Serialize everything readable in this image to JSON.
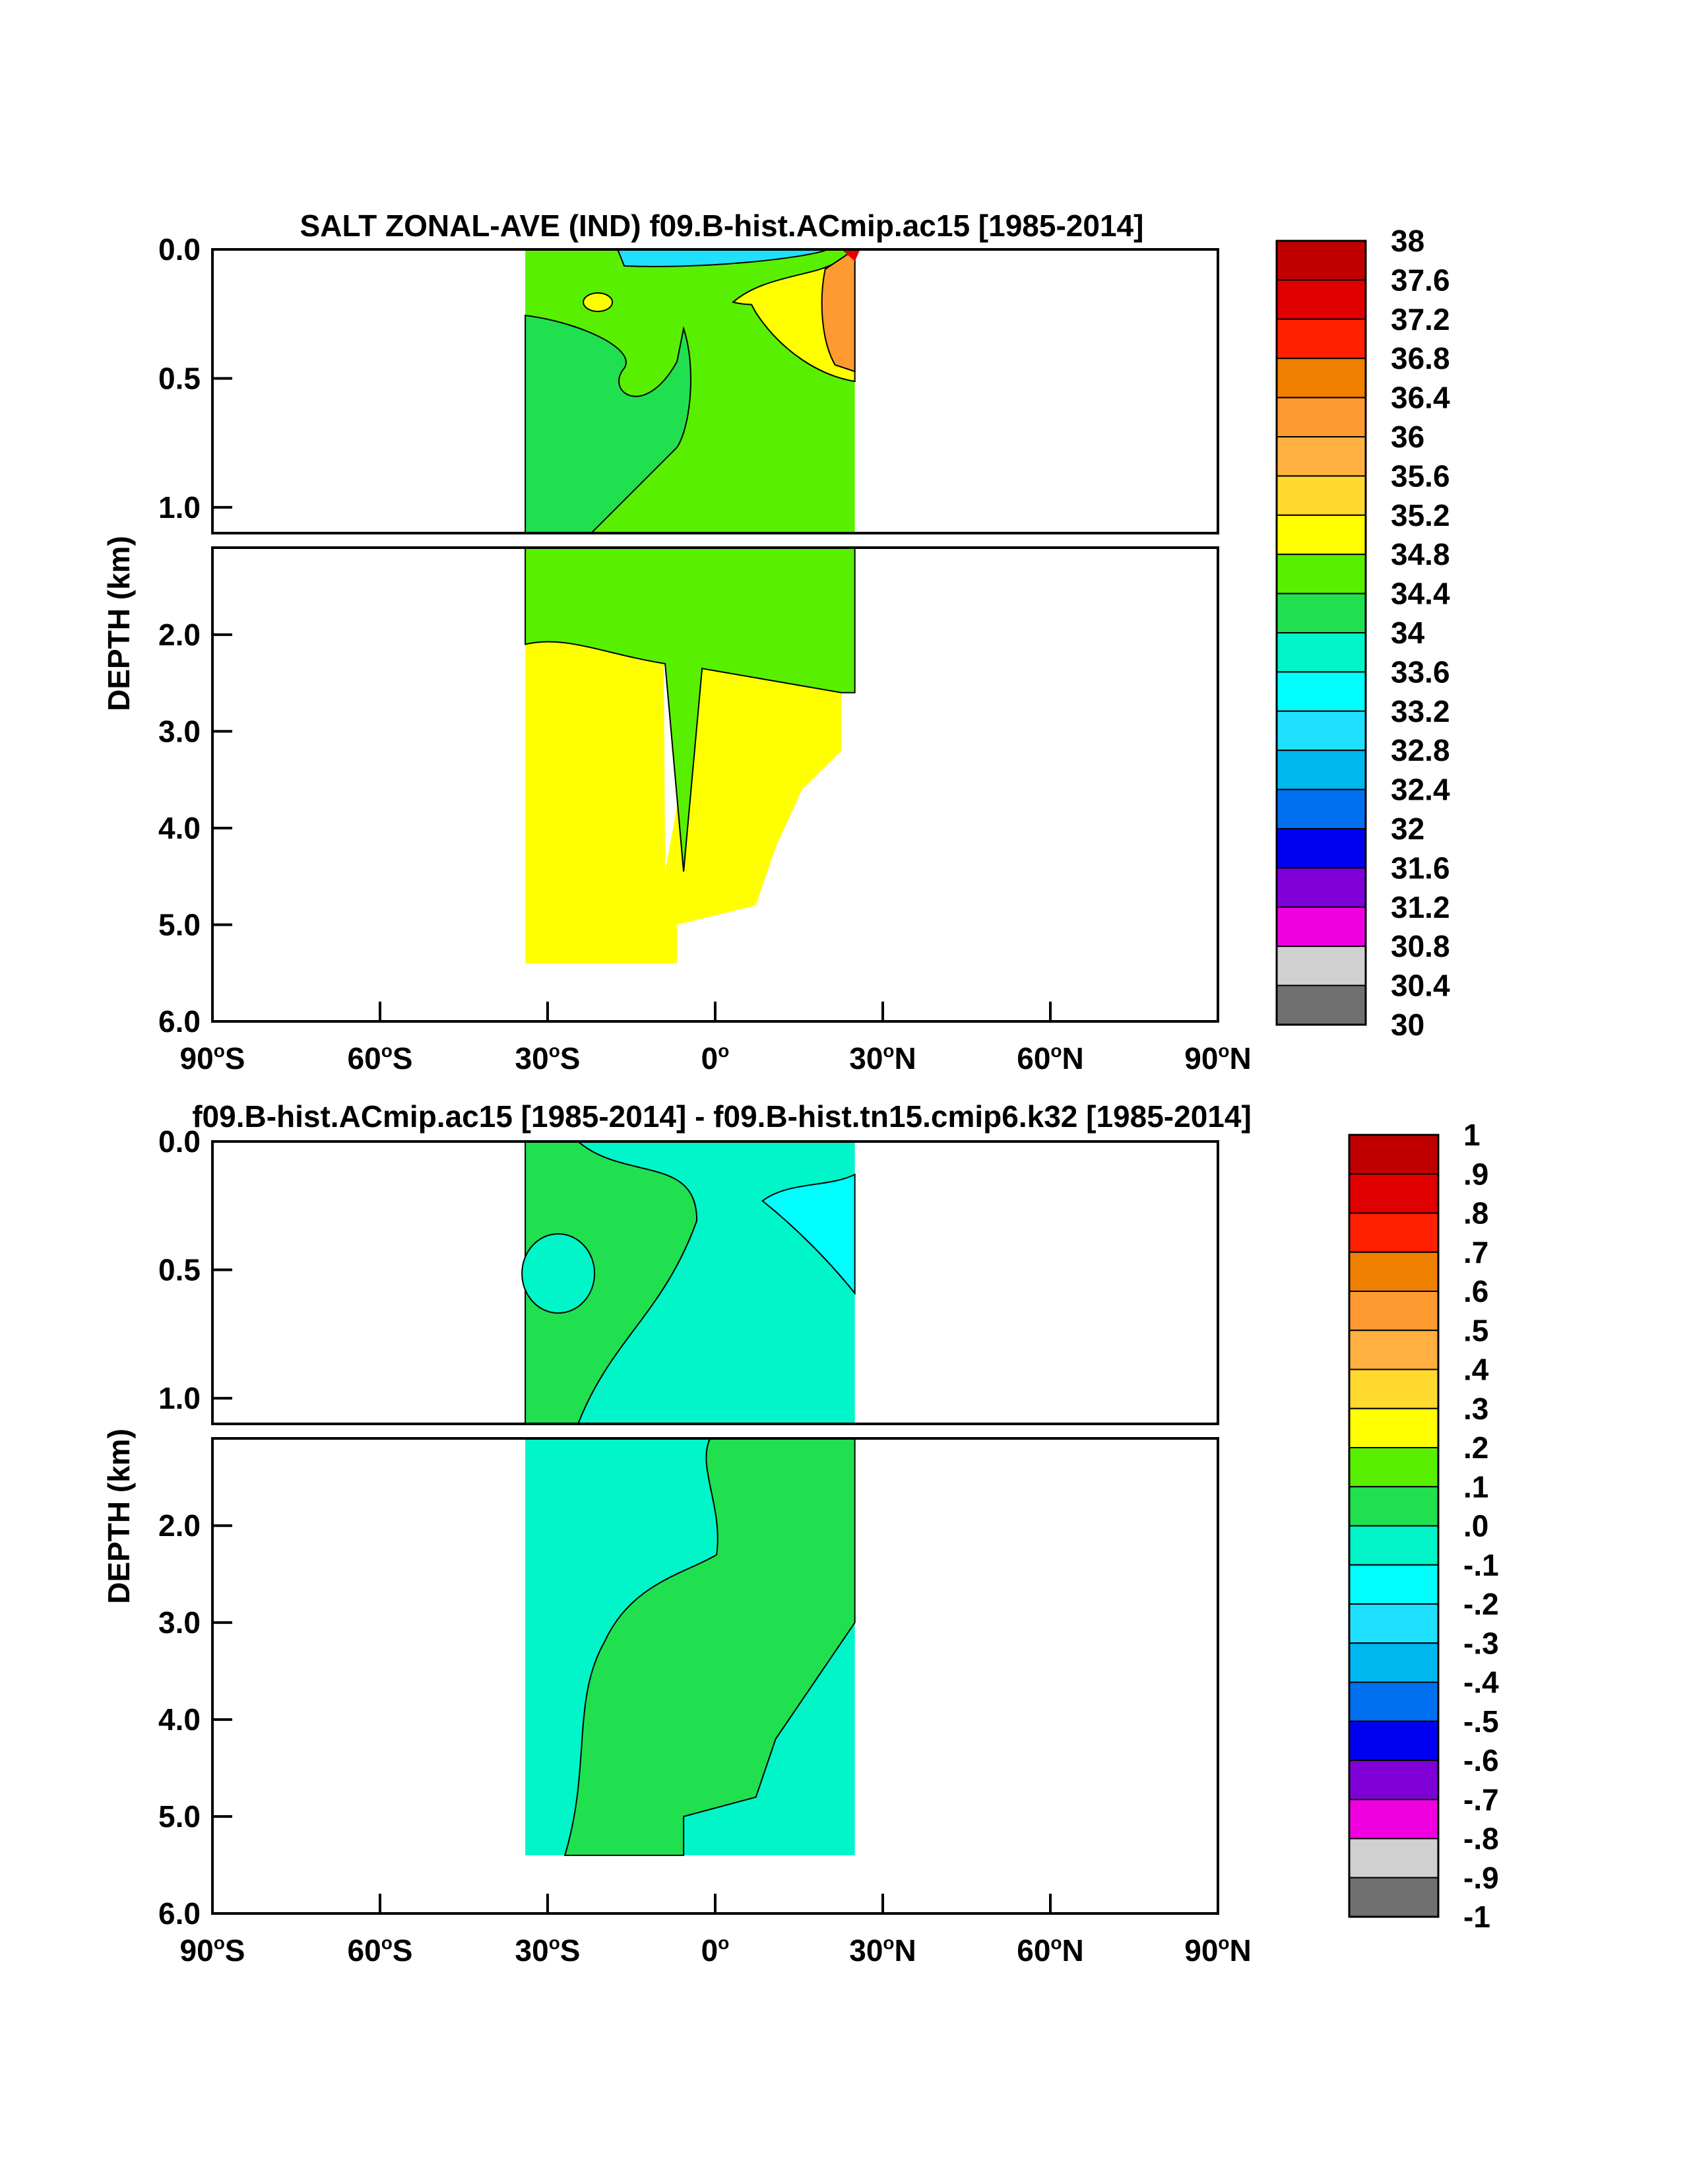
{
  "chart_data": [
    {
      "type": "contour",
      "title": "SALT ZONAL-AVE (IND) f09.B-hist.ACmip.ac15 [1985-2014]",
      "ylabel": "DEPTH (km)",
      "xlabel": "",
      "x_ticks": [
        "90°S",
        "60°S",
        "30°S",
        "0°",
        "30°N",
        "60°N",
        "90°N"
      ],
      "xlim": [
        -90,
        90
      ],
      "upper_panel": {
        "ylim": [
          0,
          1.1
        ],
        "y_ticks": [
          "0.0",
          "0.5",
          "1.0"
        ],
        "y_values": [
          0,
          0.5,
          1.0
        ]
      },
      "lower_panel": {
        "ylim": [
          1.1,
          6.0
        ],
        "y_ticks": [
          "2.0",
          "3.0",
          "4.0",
          "5.0",
          "6.0"
        ],
        "y_values": [
          2,
          3,
          4,
          5,
          6
        ]
      },
      "data_lon_range": [
        -34,
        25
      ],
      "colorbar": {
        "labels": [
          "38",
          "37.6",
          "37.2",
          "36.8",
          "36.4",
          "36",
          "35.6",
          "35.2",
          "34.8",
          "34.4",
          "34",
          "33.6",
          "33.2",
          "32.8",
          "32.4",
          "32",
          "31.6",
          "31.2",
          "30.8",
          "30.4",
          "30"
        ],
        "colors": [
          "#c00000",
          "#e00000",
          "#ff2000",
          "#f08000",
          "#ff9a30",
          "#ffb040",
          "#ffd830",
          "#ffff00",
          "#58f000",
          "#20e050",
          "#00f5c8",
          "#00ffff",
          "#20e0ff",
          "#00b8f0",
          "#0070f0",
          "#0000f0",
          "#8000d8",
          "#f000e0",
          "#d0d0d0",
          "#707070"
        ]
      },
      "fields": {
        "upper_background": "#58f000",
        "lower_background": "#ffff00",
        "regions": [
          "34.4 (green) intermediate waters",
          "34.8-35.2 (yellow) deep waters",
          "36-37.6 near 25°N surface (Red Sea/Persian Gulf outflow)",
          "33.2-34 surface fresh tongue near equator"
        ]
      }
    },
    {
      "type": "contour",
      "title": "f09.B-hist.ACmip.ac15 [1985-2014] - f09.B-hist.tn15.cmip6.k32 [1985-2014]",
      "ylabel": "DEPTH (km)",
      "xlabel": "",
      "x_ticks": [
        "90°S",
        "60°S",
        "30°S",
        "0°",
        "30°N",
        "60°N",
        "90°N"
      ],
      "xlim": [
        -90,
        90
      ],
      "upper_panel": {
        "ylim": [
          0,
          1.1
        ],
        "y_ticks": [
          "0.0",
          "0.5",
          "1.0"
        ],
        "y_values": [
          0,
          0.5,
          1.0
        ]
      },
      "lower_panel": {
        "ylim": [
          1.1,
          6.0
        ],
        "y_ticks": [
          "2.0",
          "3.0",
          "4.0",
          "5.0",
          "6.0"
        ],
        "y_values": [
          2,
          3,
          4,
          5,
          6
        ]
      },
      "data_lon_range": [
        -34,
        25
      ],
      "colorbar": {
        "labels": [
          "1",
          ".9",
          ".8",
          ".7",
          ".6",
          ".5",
          ".4",
          ".3",
          ".2",
          ".1",
          ".0",
          "-.1",
          "-.2",
          "-.3",
          "-.4",
          "-.5",
          "-.6",
          "-.7",
          "-.8",
          "-.9",
          "-1"
        ],
        "colors": [
          "#c00000",
          "#e00000",
          "#ff2000",
          "#f08000",
          "#ff9a30",
          "#ffb040",
          "#ffd830",
          "#ffff00",
          "#58f000",
          "#20e050",
          "#00f5c8",
          "#00ffff",
          "#20e0ff",
          "#00b8f0",
          "#0070f0",
          "#0000f0",
          "#8000d8",
          "#f000e0",
          "#d0d0d0",
          "#707070"
        ]
      },
      "fields": {
        "upper_background": "#00f5c8",
        "lower_background": "#00f5c8",
        "regions": [
          "0.0 to 0.1 (green) differences west/deep",
          "-0.1 to 0.0 (teal) central",
          "-0.2 to -0.1 (cyan) near-surface north"
        ]
      }
    }
  ]
}
